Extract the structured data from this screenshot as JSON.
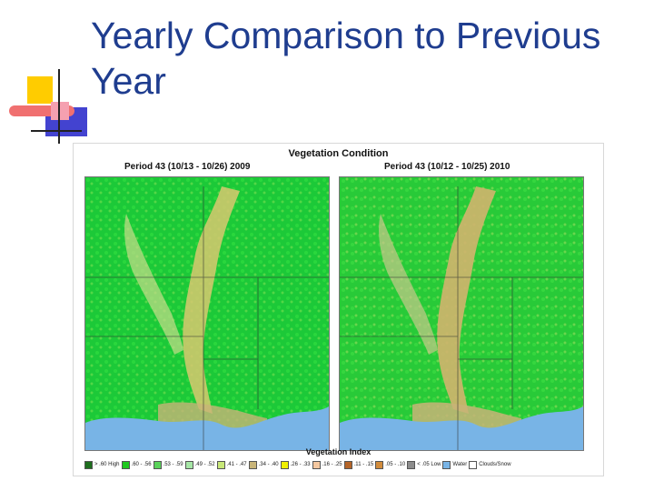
{
  "slide": {
    "title": "Yearly Comparison to Previous Year"
  },
  "figure": {
    "title": "Vegetation Condition",
    "left_period": "Period 43 (10/13 - 10/26) 2009",
    "right_period": "Period 43 (10/12 - 10/25) 2010",
    "legend_title": "Vegetation Index",
    "legend": [
      {
        "label": "> .60 High",
        "color": "#1e6e1e"
      },
      {
        "label": ".60 - .56",
        "color": "#1ec81e"
      },
      {
        "label": ".53 - .59",
        "color": "#5ad25a"
      },
      {
        "label": ".49 - .52",
        "color": "#a6e6a6"
      },
      {
        "label": ".41 - .47",
        "color": "#c8e878"
      },
      {
        "label": ".34 - .40",
        "color": "#c8b478"
      },
      {
        "label": ".26 - .33",
        "color": "#f0f000"
      },
      {
        "label": ".16 - .25",
        "color": "#f5c8a0"
      },
      {
        "label": ".11 - .15",
        "color": "#b46428"
      },
      {
        "label": ".05 - .10",
        "color": "#d28c3c"
      },
      {
        "label": "< .05 Low",
        "color": "#8c8c8c"
      },
      {
        "label": "Water",
        "color": "#78b4e6"
      },
      {
        "label": "Clouds/Snow",
        "color": "#ffffff"
      }
    ]
  },
  "colors": {
    "title": "#1f3d8f",
    "water": "#78b4e6",
    "vegetation_high": "#22d022",
    "vegetation_low": "#d8c870"
  }
}
